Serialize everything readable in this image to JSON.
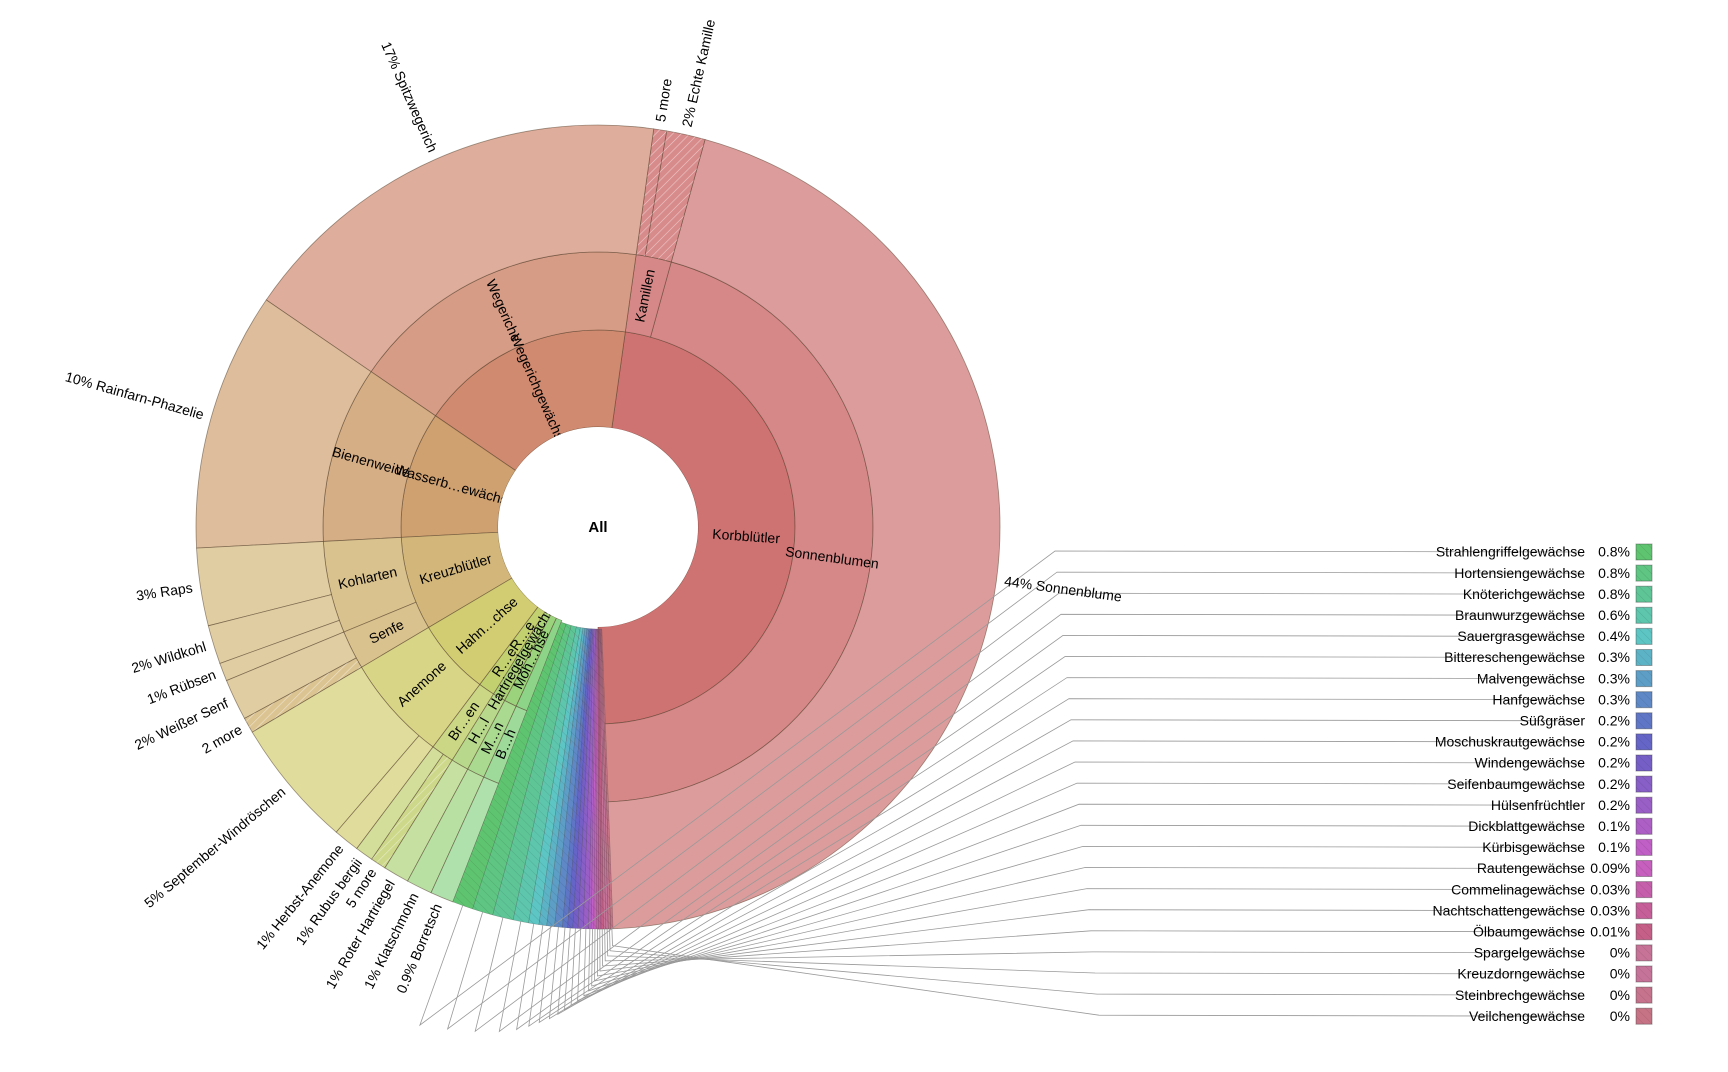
{
  "chart_data": {
    "type": "sunburst",
    "center_label": "All",
    "title": "",
    "families": [
      {
        "name": "Korbblütler",
        "color": "#cf7272",
        "groups": [
          {
            "name": "Sonnenblumen",
            "plants": [
              {
                "name": "Sonnenblume",
                "label": "44%",
                "value": 44
              }
            ]
          },
          {
            "name": "Kamillen",
            "plants": [
              {
                "name": "Echte Kamille",
                "label": "2%",
                "value": 1.5,
                "hatch": true
              },
              {
                "name": "5 more",
                "label": "",
                "value": 0.5,
                "hatch": true
              }
            ]
          }
        ]
      },
      {
        "name": "Wegerichgewächse",
        "color": "#d08a70",
        "groups": [
          {
            "name": "Wegeriche",
            "plants": [
              {
                "name": "Spitzwegerich",
                "label": "17%",
                "value": 17
              }
            ]
          }
        ]
      },
      {
        "name": "Wasserb…ewächse",
        "color": "#cfa070",
        "groups": [
          {
            "name": "Bienenweide",
            "plants": [
              {
                "name": "Rainfarn-Phazelie",
                "label": "10%",
                "value": 10
              }
            ]
          }
        ]
      },
      {
        "name": "Kreuzblütler",
        "color": "#d3b77a",
        "groups": [
          {
            "name": "Kohlarten",
            "plants": [
              {
                "name": "Raps",
                "label": "3%",
                "value": 3
              },
              {
                "name": "Wildkohl",
                "label": "2%",
                "value": 1.5
              },
              {
                "name": "Rübsen",
                "label": "1%",
                "value": 0.7
              }
            ]
          },
          {
            "name": "Senfe",
            "plants": [
              {
                "name": "Weißer Senf",
                "label": "2%",
                "value": 1.6
              },
              {
                "name": "2 more",
                "label": "",
                "value": 0.6,
                "hatch": true
              }
            ]
          }
        ]
      },
      {
        "name": "Hahn…chse",
        "color": "#d2cd72",
        "groups": [
          {
            "name": "Anemone",
            "plants": [
              {
                "name": "September-Windröschen",
                "label": "5%",
                "value": 5
              },
              {
                "name": "Herbst-Anemone",
                "label": "1%",
                "value": 1
              }
            ]
          }
        ]
      },
      {
        "name": "R…eR…e",
        "color": "#c2d070",
        "groups": [
          {
            "name": "Br…en",
            "plants": [
              {
                "name": "Rubus bergii",
                "label": "1%",
                "value": 0.7
              },
              {
                "name": "5 more",
                "label": "",
                "value": 0.6,
                "hatch": true
              }
            ]
          }
        ]
      },
      {
        "name": "Hartriegelgewächse",
        "color": "#acd278",
        "groups": [
          {
            "name": "H…l",
            "plants": [
              {
                "name": "Roter Hartriegel",
                "label": "1%",
                "value": 1
              }
            ]
          }
        ]
      },
      {
        "name": "Moh…hse",
        "color": "#9bd27c",
        "groups": [
          {
            "name": "M…n",
            "plants": [
              {
                "name": "Klatschmohn",
                "label": "1%",
                "value": 1
              }
            ]
          }
        ]
      },
      {
        "name": "B…h",
        "color": "#8dd488",
        "groups": [
          {
            "name": "B…h",
            "plants": [
              {
                "name": "Borretsch",
                "label": "0.9%",
                "value": 0.9
              }
            ]
          }
        ]
      }
    ],
    "minor_families": [
      {
        "name": "Strahlengriffelgewächse",
        "label": "0.8%",
        "value": 0.8,
        "color": "#5fc470"
      },
      {
        "name": "Hortensiengewächse",
        "label": "0.8%",
        "value": 0.8,
        "color": "#5ec582"
      },
      {
        "name": "Knöterichgewächse",
        "label": "0.8%",
        "value": 0.8,
        "color": "#5ec597"
      },
      {
        "name": "Braunwurzgewächse",
        "label": "0.6%",
        "value": 0.6,
        "color": "#5dc6ad"
      },
      {
        "name": "Sauergrasgewächse",
        "label": "0.4%",
        "value": 0.4,
        "color": "#5dc5c3"
      },
      {
        "name": "Bittereschengewächse",
        "label": "0.3%",
        "value": 0.3,
        "color": "#5db3c6"
      },
      {
        "name": "Malvengewächse",
        "label": "0.3%",
        "value": 0.3,
        "color": "#5d9ec6"
      },
      {
        "name": "Hanfgewächse",
        "label": "0.3%",
        "value": 0.3,
        "color": "#5e89c6"
      },
      {
        "name": "Süßgräser",
        "label": "0.2%",
        "value": 0.2,
        "color": "#5f76c6"
      },
      {
        "name": "Moschuskrautgewächse",
        "label": "0.2%",
        "value": 0.2,
        "color": "#6465c6"
      },
      {
        "name": "Windengewächse",
        "label": "0.2%",
        "value": 0.2,
        "color": "#755fc6"
      },
      {
        "name": "Seifenbaumgewächse",
        "label": "0.2%",
        "value": 0.2,
        "color": "#875fc6"
      },
      {
        "name": "Hülsenfrüchtler",
        "label": "0.2%",
        "value": 0.2,
        "color": "#9a5fc6"
      },
      {
        "name": "Dickblattgewächse",
        "label": "0.1%",
        "value": 0.1,
        "color": "#ae5fc6"
      },
      {
        "name": "Kürbisgewächse",
        "label": "0.1%",
        "value": 0.1,
        "color": "#c05fc6"
      },
      {
        "name": "Rautengewächse",
        "label": "0.09%",
        "value": 0.09,
        "color": "#c65fbd"
      },
      {
        "name": "Commelinagewächse",
        "label": "0.03%",
        "value": 0.03,
        "color": "#c65fab"
      },
      {
        "name": "Nachtschattengewächse",
        "label": "0.03%",
        "value": 0.03,
        "color": "#c65f99"
      },
      {
        "name": "Ölbaumgewächse",
        "label": "0.01%",
        "value": 0.01,
        "color": "#c65f88"
      },
      {
        "name": "Spargelgewächse",
        "label": "0%",
        "value": 0,
        "color": "#c67397"
      },
      {
        "name": "Kreuzdorngewächse",
        "label": "0%",
        "value": 0,
        "color": "#c6739a"
      },
      {
        "name": "Steinbrechgewächse",
        "label": "0%",
        "value": 0,
        "color": "#c6738d"
      },
      {
        "name": "Veilchengewächse",
        "label": "0%",
        "value": 0,
        "color": "#c67385"
      }
    ]
  }
}
